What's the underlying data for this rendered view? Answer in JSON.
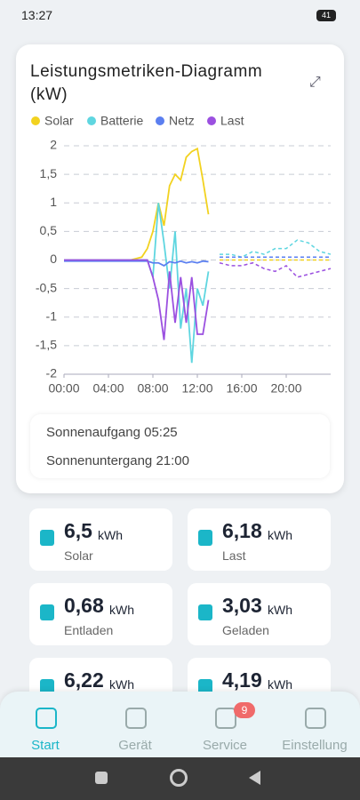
{
  "status": {
    "time": "13:27",
    "battery": "41"
  },
  "chart_data": {
    "type": "line",
    "title": "Leistungsmetriken-Diagramm (kW)",
    "x": [
      0,
      1,
      2,
      3,
      4,
      5,
      6,
      7,
      7.5,
      8,
      8.5,
      9,
      9.5,
      10,
      10.5,
      11,
      11.5,
      12,
      12.5,
      13,
      14,
      15,
      16,
      17,
      18,
      19,
      20,
      21,
      22,
      23,
      24
    ],
    "xlim": [
      0,
      24
    ],
    "xticks": [
      {
        "value": 0,
        "label": "00:00"
      },
      {
        "value": 4,
        "label": "04:00"
      },
      {
        "value": 8,
        "label": "08:00"
      },
      {
        "value": 12,
        "label": "12:00"
      },
      {
        "value": 16,
        "label": "16:00"
      },
      {
        "value": 20,
        "label": "20:00"
      }
    ],
    "ylim": [
      -2,
      2
    ],
    "yticks": [
      2,
      {
        "value": 1.5,
        "label": "1,5"
      },
      1,
      {
        "value": 0.5,
        "label": "0,5"
      },
      0,
      {
        "value": -0.5,
        "label": "-0,5"
      },
      -1,
      {
        "value": -1.5,
        "label": "-1,5"
      },
      -2
    ],
    "grid": true,
    "series": [
      {
        "name": "Solar",
        "color": "#f2d21f",
        "values": [
          0,
          0,
          0,
          0,
          0,
          0,
          0,
          0.05,
          0.2,
          0.5,
          1.0,
          0.6,
          1.3,
          1.5,
          1.4,
          1.8,
          1.9,
          1.95,
          1.4,
          0.8,
          null,
          null,
          null,
          null,
          null,
          null,
          null,
          null,
          null,
          null,
          null
        ],
        "forecast": [
          null,
          null,
          null,
          null,
          null,
          null,
          null,
          null,
          null,
          null,
          null,
          null,
          null,
          null,
          null,
          null,
          null,
          null,
          null,
          null,
          0,
          0,
          0,
          0,
          0,
          0,
          0,
          0,
          0,
          0,
          0
        ]
      },
      {
        "name": "Batterie",
        "color": "#5fd6e0",
        "values": [
          0,
          0,
          0,
          0,
          0,
          0,
          0,
          0,
          0,
          -0.3,
          1.0,
          0.3,
          -0.5,
          0.5,
          -1.2,
          -0.5,
          -1.8,
          -0.5,
          -0.8,
          -0.2,
          null,
          null,
          null,
          null,
          null,
          null,
          null,
          null,
          null,
          null,
          null
        ],
        "forecast": [
          null,
          null,
          null,
          null,
          null,
          null,
          null,
          null,
          null,
          null,
          null,
          null,
          null,
          null,
          null,
          null,
          null,
          null,
          null,
          null,
          0.1,
          0.1,
          0.05,
          0.15,
          0.1,
          0.2,
          0.2,
          0.35,
          0.3,
          0.15,
          0.1
        ]
      },
      {
        "name": "Netz",
        "color": "#5b7ff0",
        "values": [
          -0.02,
          -0.02,
          -0.02,
          -0.02,
          -0.02,
          -0.02,
          -0.02,
          -0.02,
          -0.02,
          -0.05,
          -0.05,
          -0.1,
          -0.03,
          -0.05,
          -0.02,
          -0.05,
          -0.03,
          -0.05,
          -0.02,
          -0.03,
          null,
          null,
          null,
          null,
          null,
          null,
          null,
          null,
          null,
          null,
          null
        ],
        "forecast": [
          null,
          null,
          null,
          null,
          null,
          null,
          null,
          null,
          null,
          null,
          null,
          null,
          null,
          null,
          null,
          null,
          null,
          null,
          null,
          null,
          0.05,
          0.05,
          0.05,
          0.05,
          0.05,
          0.05,
          0.05,
          0.05,
          0.05,
          0.05,
          0.05
        ]
      },
      {
        "name": "Last",
        "color": "#9b50e0",
        "values": [
          0,
          0,
          0,
          0,
          0,
          0,
          0,
          0,
          0,
          -0.3,
          -0.7,
          -1.4,
          -0.2,
          -1.1,
          -0.3,
          -1.1,
          -0.3,
          -1.3,
          -1.3,
          -0.7,
          null,
          null,
          null,
          null,
          null,
          null,
          null,
          null,
          null,
          null,
          null
        ],
        "forecast": [
          null,
          null,
          null,
          null,
          null,
          null,
          null,
          null,
          null,
          null,
          null,
          null,
          null,
          null,
          null,
          null,
          null,
          null,
          null,
          null,
          -0.05,
          -0.1,
          -0.1,
          -0.05,
          -0.15,
          -0.2,
          -0.1,
          -0.3,
          -0.25,
          -0.2,
          -0.15
        ]
      }
    ]
  },
  "sun": {
    "sunrise": "Sonnenaufgang 05:25",
    "sunset": "Sonnenuntergang 21:00"
  },
  "metrics": [
    {
      "value": "6,5",
      "unit": "kWh",
      "label": "Solar"
    },
    {
      "value": "6,18",
      "unit": "kWh",
      "label": "Last"
    },
    {
      "value": "0,68",
      "unit": "kWh",
      "label": "Entladen"
    },
    {
      "value": "3,03",
      "unit": "kWh",
      "label": "Geladen"
    },
    {
      "value": "6,22",
      "unit": "kWh"
    },
    {
      "value": "4,19",
      "unit": "kWh"
    }
  ],
  "nav": [
    {
      "label": "Start"
    },
    {
      "label": "Gerät"
    },
    {
      "label": "Service",
      "badge": "9"
    },
    {
      "label": "Einstellung"
    }
  ]
}
